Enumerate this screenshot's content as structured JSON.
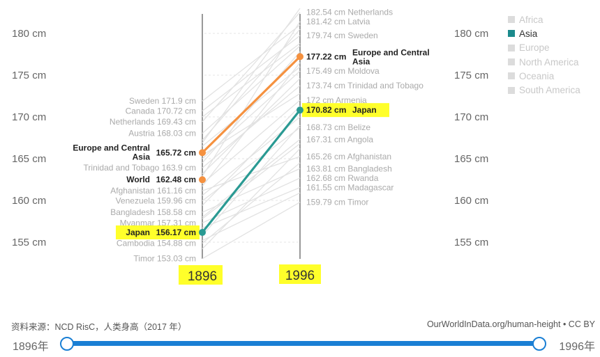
{
  "chart_data": {
    "type": "slope",
    "x": [
      "1896",
      "1996"
    ],
    "y_axis": {
      "unit": "cm",
      "ticks": [
        155,
        160,
        165,
        170,
        175,
        180
      ],
      "tick_labels": [
        "155 cm",
        "160 cm",
        "165 cm",
        "170 cm",
        "175 cm",
        "180 cm"
      ],
      "range": [
        152.5,
        183
      ]
    },
    "highlight_color": "#ffff2a",
    "colors": {
      "europe": "#f5913f",
      "world": "#f5913f",
      "japan": "#2a9a93",
      "background_lines": "#e2e2e2"
    },
    "series": [
      {
        "name": "Europe and Central Asia",
        "values": [
          165.72,
          177.22
        ],
        "color": "#f5913f"
      },
      {
        "name": "World",
        "values": [
          162.48,
          null
        ],
        "color": "#f5913f"
      },
      {
        "name": "Japan",
        "values": [
          156.17,
          170.82
        ],
        "color": "#2a9a93",
        "highlighted": true
      }
    ],
    "left_labels": [
      {
        "text": "Sweden 171.9 cm",
        "y": 171.9
      },
      {
        "text": "Canada 170.72 cm",
        "y": 170.72
      },
      {
        "text": "Netherlands 169.43 cm",
        "y": 169.43
      },
      {
        "text": "Austria 168.03 cm",
        "y": 168.03
      },
      {
        "text": "Trinidad and Tobago 163.9 cm",
        "y": 163.9
      },
      {
        "text": "Afghanistan 161.16 cm",
        "y": 161.16
      },
      {
        "text": "Venezuela 159.96 cm",
        "y": 159.96
      },
      {
        "text": "Bangladesh 158.58 cm",
        "y": 158.58
      },
      {
        "text": "Myanmar 157.31 cm",
        "y": 157.31
      },
      {
        "text": "Cambodia 154.88 cm",
        "y": 154.88
      },
      {
        "text": "Timor 153.03 cm",
        "y": 153.03
      }
    ],
    "left_bold_labels": [
      {
        "name_line1": "Europe and Central",
        "name_line2": "Asia",
        "value": "165.72 cm",
        "y": 165.72
      },
      {
        "name_line1": "World",
        "name_line2": "",
        "value": "162.48 cm",
        "y": 162.48
      },
      {
        "name_line1": "Japan",
        "name_line2": "",
        "value": "156.17 cm",
        "y": 156.17,
        "highlighted": true
      }
    ],
    "right_labels": [
      {
        "text": "182.54 cm Netherlands",
        "y": 182.54
      },
      {
        "text": "181.42 cm Latvia",
        "y": 181.42
      },
      {
        "text": "179.74 cm Sweden",
        "y": 179.74
      },
      {
        "text": "175.49 cm Moldova",
        "y": 175.49
      },
      {
        "text": "173.74 cm Trinidad and Tobago",
        "y": 173.74
      },
      {
        "text": "172 cm Armenia",
        "y": 172.0
      },
      {
        "text": "168.73 cm Belize",
        "y": 168.73
      },
      {
        "text": "167.31 cm Angola",
        "y": 167.31
      },
      {
        "text": "165.26 cm Afghanistan",
        "y": 165.26
      },
      {
        "text": "163.81 cm Bangladesh",
        "y": 163.81
      },
      {
        "text": "162.68 cm Rwanda",
        "y": 162.68
      },
      {
        "text": "161.55 cm Madagascar",
        "y": 161.55
      },
      {
        "text": "159.79 cm Timor",
        "y": 159.79
      }
    ],
    "right_bold_labels": [
      {
        "value": "177.22 cm",
        "name_line1": "Europe and Central",
        "name_line2": "Asia",
        "y": 177.22
      },
      {
        "value": "170.82 cm",
        "name_line1": "Japan",
        "name_line2": "",
        "y": 170.82,
        "highlighted": true
      }
    ],
    "background_lines": [
      [
        171.9,
        181.0
      ],
      [
        170.72,
        179.74
      ],
      [
        169.43,
        182.54
      ],
      [
        168.03,
        178.5
      ],
      [
        167.2,
        180.5
      ],
      [
        166.5,
        176.0
      ],
      [
        165.0,
        175.49
      ],
      [
        164.5,
        177.8
      ],
      [
        163.9,
        173.74
      ],
      [
        163.2,
        174.6
      ],
      [
        162.9,
        181.42
      ],
      [
        162.0,
        172.0
      ],
      [
        161.16,
        165.26
      ],
      [
        160.6,
        170.0
      ],
      [
        159.96,
        168.73
      ],
      [
        159.4,
        171.3
      ],
      [
        158.58,
        163.81
      ],
      [
        158.0,
        167.31
      ],
      [
        157.31,
        162.68
      ],
      [
        156.7,
        161.55
      ],
      [
        155.8,
        169.0
      ],
      [
        154.88,
        164.5
      ],
      [
        154.2,
        166.2
      ],
      [
        153.03,
        159.79
      ],
      [
        166.9,
        183.0
      ],
      [
        170.0,
        178.8
      ],
      [
        161.7,
        176.5
      ],
      [
        165.4,
        172.8
      ],
      [
        157.8,
        166.8
      ],
      [
        155.2,
        160.9
      ]
    ]
  },
  "legend": {
    "items": [
      {
        "label": "Africa",
        "active": false
      },
      {
        "label": "Asia",
        "active": true
      },
      {
        "label": "Europe",
        "active": false
      },
      {
        "label": "North America",
        "active": false
      },
      {
        "label": "Oceania",
        "active": false
      },
      {
        "label": "South America",
        "active": false
      }
    ]
  },
  "footer": {
    "source": "资料来源：NCD RisC，人类身高（2017 年）",
    "url": "OurWorldInData.org/human-height • CC BY"
  },
  "timeline": {
    "start_label": "1896年",
    "end_label": "1996年"
  }
}
